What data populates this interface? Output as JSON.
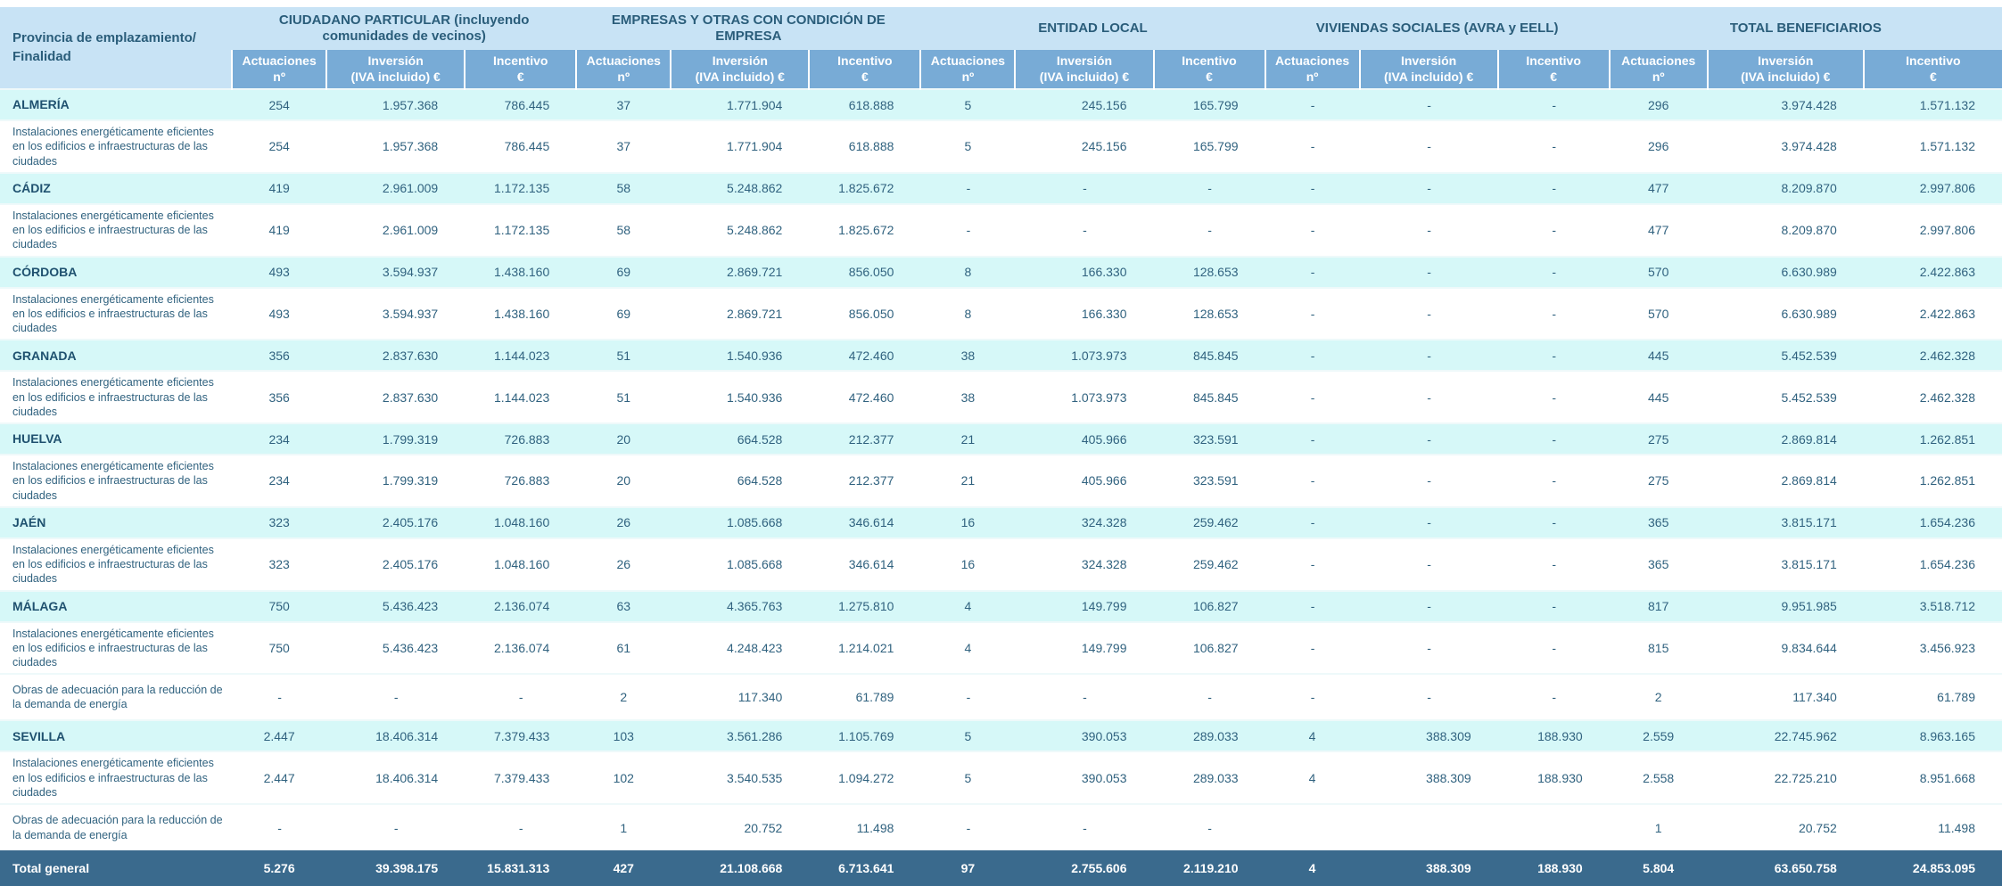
{
  "colors": {
    "group_header_bg": "#c8e3f5",
    "subheader_bg": "#78abd6",
    "province_row_bg": "#d6f8f8",
    "detail_row_bg": "#ffffff",
    "footer_bg": "#3a6a8d",
    "header_text": "#2a5d7a",
    "data_text": "#30627f",
    "footer_text": "#ffffff"
  },
  "table": {
    "row_header": {
      "line1": "Provincia de emplazamiento/",
      "line2": "Finalidad"
    },
    "groups": [
      {
        "label": "CIUDADANO PARTICULAR (incluyendo comunidades de vecinos)"
      },
      {
        "label": "EMPRESAS Y OTRAS CON CONDICIÓN DE EMPRESA"
      },
      {
        "label": "ENTIDAD LOCAL"
      },
      {
        "label": "VIVIENDAS SOCIALES (AVRA y EELL)"
      },
      {
        "label": "TOTAL BENEFICIARIOS"
      }
    ],
    "sub_headers": [
      {
        "line1": "Actuaciones",
        "line2": "nº"
      },
      {
        "line1": "Inversión",
        "line2": "(IVA incluido) €"
      },
      {
        "line1": "Incentivo",
        "line2": "€"
      }
    ],
    "rows": [
      {
        "type": "province",
        "label": "ALMERÍA",
        "values": [
          "254",
          "1.957.368",
          "786.445",
          "37",
          "1.771.904",
          "618.888",
          "5",
          "245.156",
          "165.799",
          "-",
          "-",
          "-",
          "296",
          "3.974.428",
          "1.571.132"
        ]
      },
      {
        "type": "detail",
        "label": "Instalaciones energéticamente eficientes en los edificios e infraestructuras de las ciudades",
        "values": [
          "254",
          "1.957.368",
          "786.445",
          "37",
          "1.771.904",
          "618.888",
          "5",
          "245.156",
          "165.799",
          "-",
          "-",
          "-",
          "296",
          "3.974.428",
          "1.571.132"
        ]
      },
      {
        "type": "province",
        "label": "CÁDIZ",
        "values": [
          "419",
          "2.961.009",
          "1.172.135",
          "58",
          "5.248.862",
          "1.825.672",
          "-",
          "-",
          "-",
          "-",
          "-",
          "-",
          "477",
          "8.209.870",
          "2.997.806"
        ]
      },
      {
        "type": "detail",
        "label": "Instalaciones energéticamente eficientes en los edificios e infraestructuras de las ciudades",
        "values": [
          "419",
          "2.961.009",
          "1.172.135",
          "58",
          "5.248.862",
          "1.825.672",
          "-",
          "-",
          "-",
          "-",
          "-",
          "-",
          "477",
          "8.209.870",
          "2.997.806"
        ]
      },
      {
        "type": "province",
        "label": "CÓRDOBA",
        "values": [
          "493",
          "3.594.937",
          "1.438.160",
          "69",
          "2.869.721",
          "856.050",
          "8",
          "166.330",
          "128.653",
          "-",
          "-",
          "-",
          "570",
          "6.630.989",
          "2.422.863"
        ]
      },
      {
        "type": "detail",
        "label": "Instalaciones energéticamente eficientes en los edificios e infraestructuras de las ciudades",
        "values": [
          "493",
          "3.594.937",
          "1.438.160",
          "69",
          "2.869.721",
          "856.050",
          "8",
          "166.330",
          "128.653",
          "-",
          "-",
          "-",
          "570",
          "6.630.989",
          "2.422.863"
        ]
      },
      {
        "type": "province",
        "label": "GRANADA",
        "values": [
          "356",
          "2.837.630",
          "1.144.023",
          "51",
          "1.540.936",
          "472.460",
          "38",
          "1.073.973",
          "845.845",
          "-",
          "-",
          "-",
          "445",
          "5.452.539",
          "2.462.328"
        ]
      },
      {
        "type": "detail",
        "label": "Instalaciones energéticamente eficientes en los edificios e infraestructuras de las ciudades",
        "values": [
          "356",
          "2.837.630",
          "1.144.023",
          "51",
          "1.540.936",
          "472.460",
          "38",
          "1.073.973",
          "845.845",
          "-",
          "-",
          "-",
          "445",
          "5.452.539",
          "2.462.328"
        ]
      },
      {
        "type": "province",
        "label": "HUELVA",
        "values": [
          "234",
          "1.799.319",
          "726.883",
          "20",
          "664.528",
          "212.377",
          "21",
          "405.966",
          "323.591",
          "-",
          "-",
          "-",
          "275",
          "2.869.814",
          "1.262.851"
        ]
      },
      {
        "type": "detail",
        "label": "Instalaciones energéticamente eficientes en los edificios e infraestructuras de las ciudades",
        "values": [
          "234",
          "1.799.319",
          "726.883",
          "20",
          "664.528",
          "212.377",
          "21",
          "405.966",
          "323.591",
          "-",
          "-",
          "-",
          "275",
          "2.869.814",
          "1.262.851"
        ]
      },
      {
        "type": "province",
        "label": "JAÉN",
        "values": [
          "323",
          "2.405.176",
          "1.048.160",
          "26",
          "1.085.668",
          "346.614",
          "16",
          "324.328",
          "259.462",
          "-",
          "-",
          "-",
          "365",
          "3.815.171",
          "1.654.236"
        ]
      },
      {
        "type": "detail",
        "label": "Instalaciones energéticamente eficientes en los edificios e infraestructuras de las ciudades",
        "values": [
          "323",
          "2.405.176",
          "1.048.160",
          "26",
          "1.085.668",
          "346.614",
          "16",
          "324.328",
          "259.462",
          "-",
          "-",
          "-",
          "365",
          "3.815.171",
          "1.654.236"
        ]
      },
      {
        "type": "province",
        "label": "MÁLAGA",
        "values": [
          "750",
          "5.436.423",
          "2.136.074",
          "63",
          "4.365.763",
          "1.275.810",
          "4",
          "149.799",
          "106.827",
          "-",
          "-",
          "-",
          "817",
          "9.951.985",
          "3.518.712"
        ]
      },
      {
        "type": "detail",
        "label": "Instalaciones energéticamente eficientes en los edificios e infraestructuras de las ciudades",
        "values": [
          "750",
          "5.436.423",
          "2.136.074",
          "61",
          "4.248.423",
          "1.214.021",
          "4",
          "149.799",
          "106.827",
          "-",
          "-",
          "-",
          "815",
          "9.834.644",
          "3.456.923"
        ]
      },
      {
        "type": "detail",
        "label": "Obras de adecuación para la reducción de la demanda de energía",
        "values": [
          "-",
          "-",
          "-",
          "2",
          "117.340",
          "61.789",
          "-",
          "-",
          "-",
          "-",
          "-",
          "-",
          "2",
          "117.340",
          "61.789"
        ]
      },
      {
        "type": "province",
        "label": "SEVILLA",
        "values": [
          "2.447",
          "18.406.314",
          "7.379.433",
          "103",
          "3.561.286",
          "1.105.769",
          "5",
          "390.053",
          "289.033",
          "4",
          "388.309",
          "188.930",
          "2.559",
          "22.745.962",
          "8.963.165"
        ]
      },
      {
        "type": "detail",
        "label": "Instalaciones energéticamente eficientes en los edificios e infraestructuras de las ciudades",
        "values": [
          "2.447",
          "18.406.314",
          "7.379.433",
          "102",
          "3.540.535",
          "1.094.272",
          "5",
          "390.053",
          "289.033",
          "4",
          "388.309",
          "188.930",
          "2.558",
          "22.725.210",
          "8.951.668"
        ]
      },
      {
        "type": "detail",
        "label": "Obras de adecuación para la reducción de la demanda de energía",
        "values": [
          "-",
          "-",
          "-",
          "1",
          "20.752",
          "11.498",
          "-",
          "-",
          "-",
          "",
          "",
          "",
          "1",
          "20.752",
          "11.498"
        ]
      }
    ],
    "footer": {
      "label": "Total general",
      "values": [
        "5.276",
        "39.398.175",
        "15.831.313",
        "427",
        "21.108.668",
        "6.713.641",
        "97",
        "2.755.606",
        "2.119.210",
        "4",
        "388.309",
        "188.930",
        "5.804",
        "63.650.758",
        "24.853.095"
      ]
    }
  }
}
